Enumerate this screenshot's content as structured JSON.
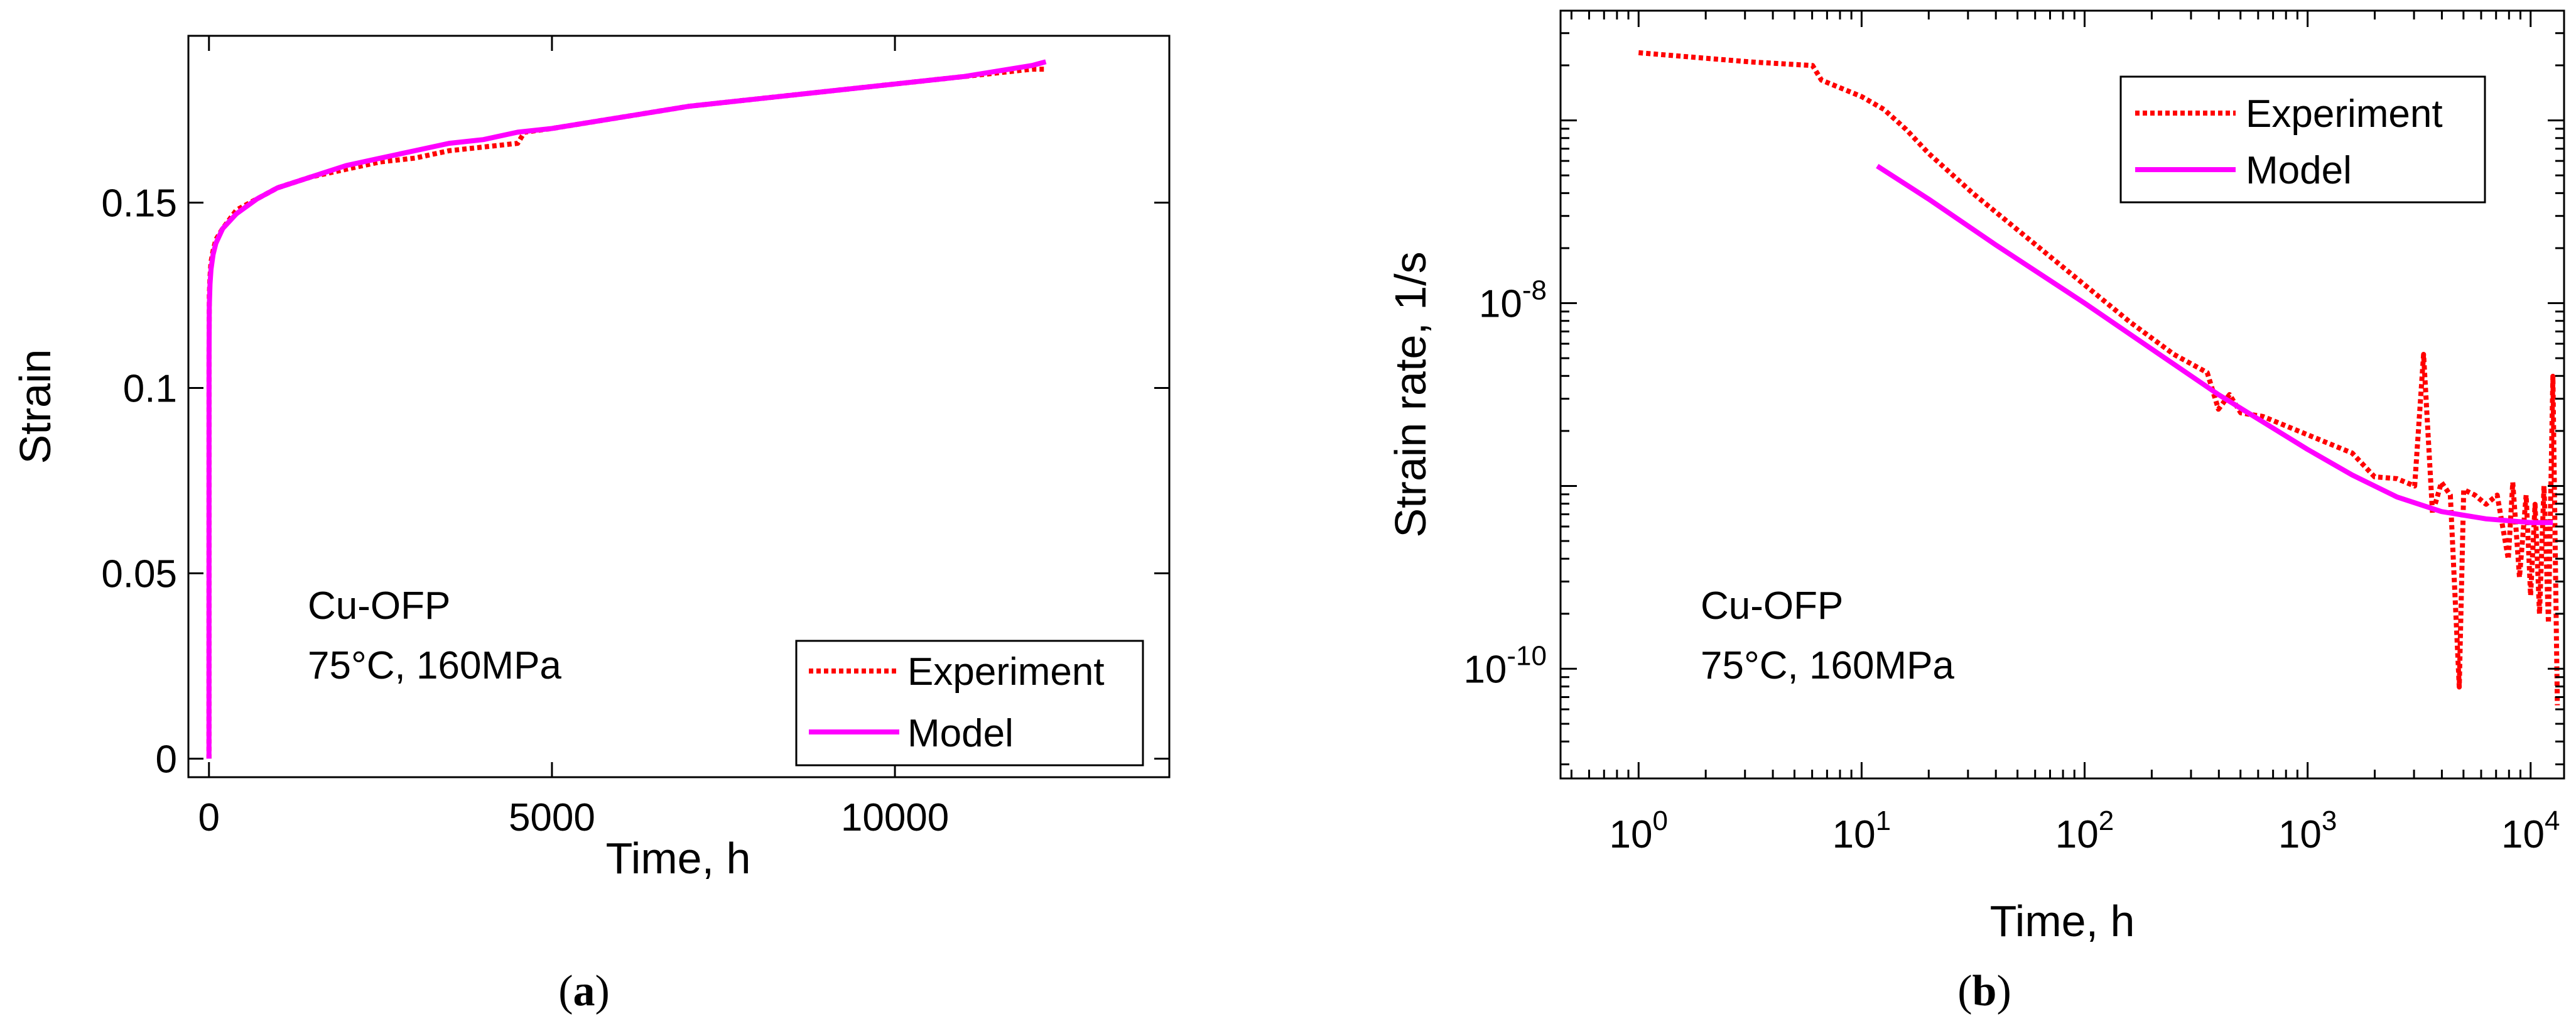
{
  "chart_data": [
    {
      "id": "a",
      "type": "line",
      "caption_open": "(",
      "caption_letter": "a",
      "caption_close": ")",
      "xlabel": "Time, h",
      "ylabel": "Strain",
      "xscale": "linear",
      "yscale": "linear",
      "xlim": [
        -300,
        14000
      ],
      "ylim": [
        -0.005,
        0.195
      ],
      "xticks": [
        0,
        5000,
        10000
      ],
      "xtick_labels": [
        "0",
        "5000",
        "10000"
      ],
      "yticks": [
        0,
        0.05,
        0.1,
        0.15
      ],
      "ytick_labels": [
        "0",
        "0.05",
        "0.1",
        "0.15"
      ],
      "annotation_lines": [
        "Cu-OFP",
        "75°C, 160MPa"
      ],
      "annotation_position": "lower-left",
      "legend_position": "bottom-right",
      "series": [
        {
          "name": "Experiment",
          "color": "#ff0000",
          "style": "dotted",
          "x": [
            0,
            1,
            5,
            15,
            30,
            60,
            100,
            200,
            400,
            700,
            1000,
            1500,
            2000,
            2500,
            3000,
            3500,
            4000,
            4500,
            4600,
            5000,
            6000,
            7000,
            8000,
            9000,
            10000,
            11000,
            12000,
            12200
          ],
          "y": [
            0.0,
            0.11,
            0.125,
            0.13,
            0.134,
            0.137,
            0.14,
            0.143,
            0.148,
            0.151,
            0.154,
            0.157,
            0.159,
            0.161,
            0.162,
            0.164,
            0.165,
            0.166,
            0.169,
            0.17,
            0.173,
            0.176,
            0.178,
            0.18,
            0.182,
            0.184,
            0.186,
            0.186
          ]
        },
        {
          "name": "Model",
          "color": "#ff00ff",
          "style": "solid",
          "x": [
            0,
            1,
            5,
            15,
            30,
            60,
            100,
            200,
            400,
            700,
            1000,
            1500,
            2000,
            2500,
            3000,
            3500,
            4000,
            4500,
            5000,
            6000,
            7000,
            8000,
            9000,
            10000,
            11000,
            12000,
            12200
          ],
          "y": [
            0.0,
            0.108,
            0.122,
            0.128,
            0.132,
            0.136,
            0.139,
            0.143,
            0.147,
            0.151,
            0.154,
            0.157,
            0.16,
            0.162,
            0.164,
            0.166,
            0.167,
            0.169,
            0.17,
            0.173,
            0.176,
            0.178,
            0.18,
            0.182,
            0.184,
            0.187,
            0.188
          ]
        }
      ]
    },
    {
      "id": "b",
      "type": "line",
      "caption_open": "(",
      "caption_letter": "b",
      "caption_close": ")",
      "xlabel": "Time, h",
      "ylabel": "Strain rate, 1/s",
      "xscale": "log",
      "yscale": "log",
      "xlim_exp": [
        -0.35,
        4.15
      ],
      "ylim_exp": [
        -10.6,
        -6.4
      ],
      "xtick_exponents": [
        0,
        1,
        2,
        3,
        4
      ],
      "xtick_base": "10",
      "xtick_labels": [
        "0",
        "1",
        "2",
        "3",
        "4"
      ],
      "ytick_exponents": [
        -10,
        -8
      ],
      "ytick_base": "10",
      "ytick_labels": [
        "-10",
        "-8"
      ],
      "annotation_lines": [
        "Cu-OFP",
        "75°C, 160MPa"
      ],
      "annotation_position": "lower-left",
      "legend_position": "top-right",
      "series": [
        {
          "name": "Experiment",
          "color": "#ff0000",
          "style": "dotted",
          "log_x": [
            0.0,
            0.5,
            0.78,
            0.82,
            0.9,
            1.0,
            1.1,
            1.2,
            1.3,
            1.5,
            1.7,
            2.0,
            2.2,
            2.4,
            2.55,
            2.6,
            2.65,
            2.7,
            2.8,
            3.0,
            3.2,
            3.3,
            3.4,
            3.48,
            3.52,
            3.56,
            3.6,
            3.64,
            3.68,
            3.7,
            3.75,
            3.8,
            3.85,
            3.9,
            3.92,
            3.95,
            3.98,
            4.0,
            4.02,
            4.04,
            4.06,
            4.08,
            4.1,
            4.12
          ],
          "log_y": [
            -6.63,
            -6.68,
            -6.7,
            -6.78,
            -6.82,
            -6.87,
            -6.94,
            -7.05,
            -7.18,
            -7.4,
            -7.6,
            -7.9,
            -8.1,
            -8.28,
            -8.38,
            -8.58,
            -8.5,
            -8.6,
            -8.62,
            -8.72,
            -8.82,
            -8.95,
            -8.96,
            -9.0,
            -8.28,
            -9.15,
            -8.98,
            -9.05,
            -10.1,
            -9.02,
            -9.05,
            -9.1,
            -9.05,
            -9.4,
            -8.98,
            -9.5,
            -9.05,
            -9.6,
            -9.1,
            -9.7,
            -9.0,
            -9.75,
            -8.4,
            -10.2
          ]
        },
        {
          "name": "Model",
          "color": "#ff00ff",
          "style": "solid",
          "log_x": [
            1.07,
            1.3,
            1.6,
            2.0,
            2.3,
            2.6,
            2.8,
            3.0,
            3.2,
            3.4,
            3.6,
            3.8,
            4.0,
            4.1
          ],
          "log_y": [
            -7.25,
            -7.43,
            -7.68,
            -8.0,
            -8.25,
            -8.5,
            -8.65,
            -8.8,
            -8.94,
            -9.06,
            -9.14,
            -9.18,
            -9.2,
            -9.2
          ]
        }
      ]
    }
  ]
}
